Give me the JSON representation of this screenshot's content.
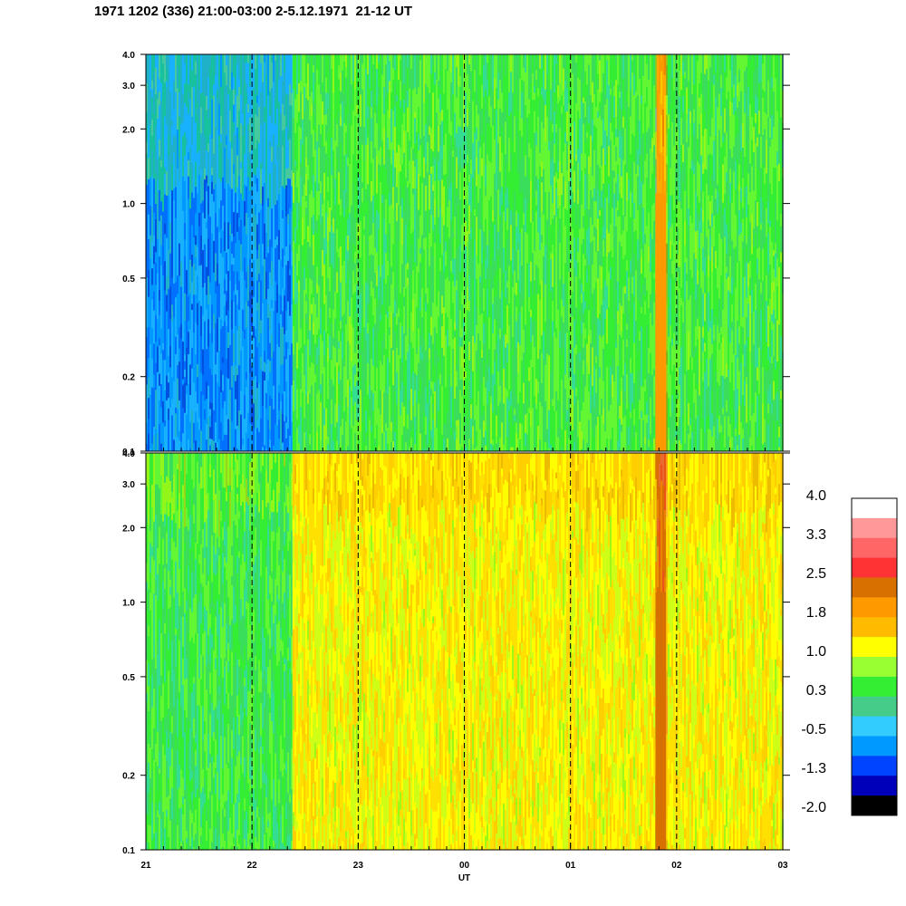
{
  "title": "1971 1202 (336) 21:00-03:00 2-5.12.1971  21-12 UT",
  "chart_data": [
    {
      "type": "heatmap",
      "panel": "upper",
      "x_ticks": [
        "21",
        "22",
        "23",
        "00",
        "01",
        "02",
        "03"
      ],
      "y_scale": "log",
      "ylim": [
        0.1,
        4.0
      ],
      "y_ticks": [
        "4.0",
        "3.0",
        "2.0",
        "1.0",
        "0.5",
        "0.2",
        "0.1"
      ],
      "dashed_verticals_at_hours": [
        22,
        23,
        24,
        25,
        26
      ],
      "regions": [
        {
          "x_range_hours": [
            21.0,
            22.38
          ],
          "dominant_level": -0.9,
          "note": "blue/cyan at low y"
        },
        {
          "x_range_hours": [
            22.38,
            27.0
          ],
          "dominant_level": 0.4,
          "note": "green"
        },
        {
          "x_range_hours": [
            25.8,
            25.9
          ],
          "dominant_level": 2.0,
          "note": "orange streak"
        }
      ]
    },
    {
      "type": "heatmap",
      "panel": "lower",
      "x_ticks": [
        "21",
        "22",
        "23",
        "00",
        "01",
        "02",
        "03"
      ],
      "xlabel": "UT",
      "y_scale": "log",
      "ylim": [
        0.1,
        4.0
      ],
      "y_ticks": [
        "4.0",
        "3.0",
        "2.0",
        "1.0",
        "0.5",
        "0.2",
        "0.1"
      ],
      "dashed_verticals_at_hours": [
        22,
        23,
        24,
        25,
        26
      ],
      "regions": [
        {
          "x_range_hours": [
            21.0,
            22.38
          ],
          "dominant_level": 0.3,
          "note": "green with yellow at top"
        },
        {
          "x_range_hours": [
            22.38,
            27.0
          ],
          "dominant_level": 1.4,
          "note": "yellow/orange"
        },
        {
          "x_range_hours": [
            25.8,
            25.9
          ],
          "dominant_level": 2.6,
          "note": "red streak"
        }
      ]
    }
  ],
  "colorbar": {
    "labels": [
      "4.0",
      "3.3",
      "2.5",
      "1.8",
      "1.0",
      "0.3",
      "-0.5",
      "-1.3",
      "-2.0"
    ],
    "colors_top_to_bottom": [
      "#ffffff",
      "#ff9999",
      "#ff6666",
      "#ff3333",
      "#d87000",
      "#ff9900",
      "#ffbb00",
      "#ffff00",
      "#99ff33",
      "#33ee33",
      "#44cc88",
      "#33ccff",
      "#0099ff",
      "#0044ff",
      "#0000bb",
      "#000000"
    ]
  }
}
